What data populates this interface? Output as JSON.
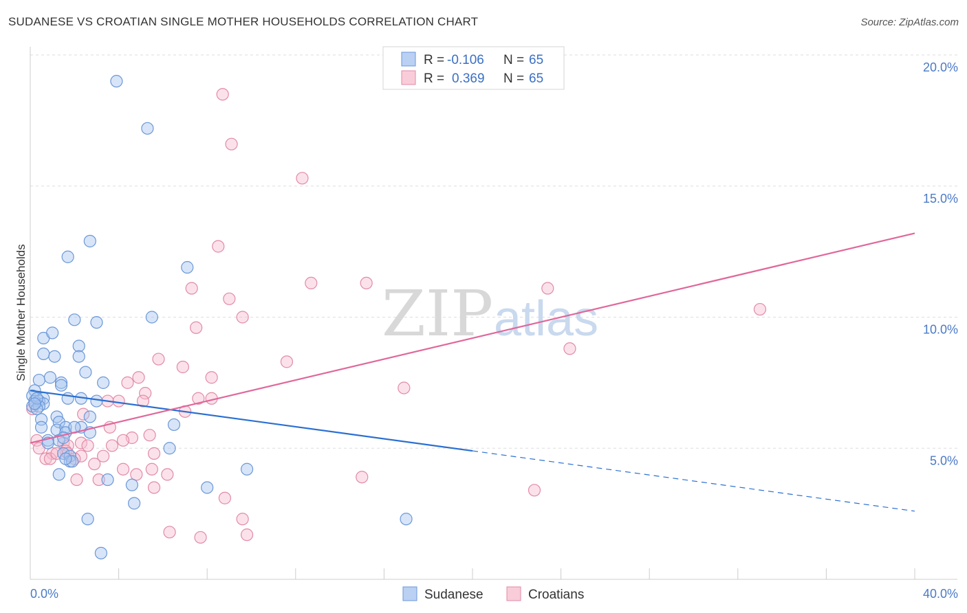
{
  "title": "SUDANESE VS CROATIAN SINGLE MOTHER HOUSEHOLDS CORRELATION CHART",
  "source": "Source: ZipAtlas.com",
  "watermark": {
    "zip": "ZIP",
    "atlas": "atlas"
  },
  "colors": {
    "sudanese_fill": "#a9c6f0",
    "sudanese_stroke": "#6a97d8",
    "sudanese_line": "#2a6fd1",
    "croatian_fill": "#f7bfd0",
    "croatian_stroke": "#e28aa6",
    "croatian_line": "#e0679a",
    "axis_text": "#4a7ac7",
    "grid": "#dddddd"
  },
  "legend": {
    "items": [
      {
        "r_label": "R =",
        "r_value": "-0.106",
        "n_label": "N =",
        "n_value": "65"
      },
      {
        "r_label": "R =",
        "r_value": "0.369",
        "n_label": "N =",
        "n_value": "65"
      }
    ],
    "bottom": [
      "Sudanese",
      "Croatians"
    ]
  },
  "chart_data": {
    "type": "scatter",
    "title": "SUDANESE VS CROATIAN SINGLE MOTHER HOUSEHOLDS CORRELATION CHART",
    "xlabel": "",
    "ylabel": "Single Mother Households",
    "xlim": [
      0,
      40
    ],
    "ylim": [
      0,
      20
    ],
    "x_tick_labels": [
      "0.0%",
      "40.0%"
    ],
    "y_ticks": [
      5,
      10,
      15,
      20
    ],
    "y_tick_labels": [
      "5.0%",
      "10.0%",
      "15.0%",
      "20.0%"
    ],
    "grid": true,
    "legend_position": "top-center",
    "series": [
      {
        "name": "Sudanese",
        "r": -0.106,
        "n": 65,
        "trend": {
          "x0": 0,
          "y0": 7.2,
          "x1": 20,
          "y1": 4.9,
          "x_dash_end": 40,
          "y_dash_end": 2.6
        },
        "points": [
          [
            3.9,
            19.0
          ],
          [
            5.3,
            17.2
          ],
          [
            2.7,
            12.9
          ],
          [
            1.7,
            12.3
          ],
          [
            7.1,
            11.9
          ],
          [
            2.0,
            9.9
          ],
          [
            3.0,
            9.8
          ],
          [
            5.5,
            10.0
          ],
          [
            0.6,
            9.2
          ],
          [
            1.0,
            9.4
          ],
          [
            2.2,
            8.9
          ],
          [
            0.6,
            8.6
          ],
          [
            1.1,
            8.5
          ],
          [
            2.2,
            8.5
          ],
          [
            2.5,
            7.9
          ],
          [
            0.4,
            7.6
          ],
          [
            0.9,
            7.7
          ],
          [
            1.4,
            7.5
          ],
          [
            1.4,
            7.4
          ],
          [
            3.3,
            7.5
          ],
          [
            0.2,
            7.2
          ],
          [
            0.1,
            7.0
          ],
          [
            0.6,
            6.9
          ],
          [
            1.7,
            6.9
          ],
          [
            2.3,
            6.9
          ],
          [
            3.0,
            6.8
          ],
          [
            0.2,
            6.8
          ],
          [
            0.4,
            6.8
          ],
          [
            0.6,
            6.7
          ],
          [
            0.1,
            6.6
          ],
          [
            0.4,
            6.6
          ],
          [
            0.3,
            6.5
          ],
          [
            1.2,
            6.2
          ],
          [
            0.5,
            6.1
          ],
          [
            2.7,
            6.2
          ],
          [
            1.3,
            6.0
          ],
          [
            6.5,
            5.9
          ],
          [
            0.5,
            5.8
          ],
          [
            1.2,
            5.7
          ],
          [
            1.6,
            5.8
          ],
          [
            2.3,
            5.8
          ],
          [
            1.6,
            5.6
          ],
          [
            2.7,
            5.6
          ],
          [
            0.8,
            5.3
          ],
          [
            1.3,
            5.3
          ],
          [
            6.3,
            5.0
          ],
          [
            1.5,
            4.8
          ],
          [
            1.8,
            4.7
          ],
          [
            1.8,
            4.5
          ],
          [
            1.9,
            4.5
          ],
          [
            9.8,
            4.2
          ],
          [
            1.3,
            4.0
          ],
          [
            3.5,
            3.8
          ],
          [
            4.6,
            3.6
          ],
          [
            8.0,
            3.5
          ],
          [
            4.7,
            2.9
          ],
          [
            2.6,
            2.3
          ],
          [
            17.0,
            2.3
          ],
          [
            3.2,
            1.0
          ],
          [
            0.3,
            6.9
          ],
          [
            0.2,
            6.7
          ],
          [
            1.5,
            5.4
          ],
          [
            2.0,
            5.8
          ],
          [
            0.8,
            5.2
          ],
          [
            1.6,
            4.6
          ]
        ]
      },
      {
        "name": "Croatians",
        "r": 0.369,
        "n": 65,
        "trend": {
          "x0": 0,
          "y0": 5.2,
          "x1": 40,
          "y1": 13.2
        },
        "points": [
          [
            8.7,
            18.5
          ],
          [
            9.1,
            16.6
          ],
          [
            12.3,
            15.3
          ],
          [
            8.5,
            12.7
          ],
          [
            12.7,
            11.3
          ],
          [
            7.3,
            11.1
          ],
          [
            15.2,
            11.3
          ],
          [
            23.4,
            11.1
          ],
          [
            9.0,
            10.7
          ],
          [
            9.6,
            10.0
          ],
          [
            33.0,
            10.3
          ],
          [
            7.5,
            9.6
          ],
          [
            24.4,
            8.8
          ],
          [
            5.8,
            8.4
          ],
          [
            11.6,
            8.3
          ],
          [
            6.9,
            8.1
          ],
          [
            4.9,
            7.7
          ],
          [
            8.2,
            7.7
          ],
          [
            4.4,
            7.5
          ],
          [
            16.9,
            7.3
          ],
          [
            5.2,
            7.1
          ],
          [
            7.6,
            6.9
          ],
          [
            8.2,
            6.9
          ],
          [
            4.0,
            6.8
          ],
          [
            3.5,
            6.8
          ],
          [
            5.1,
            6.8
          ],
          [
            7.0,
            6.4
          ],
          [
            2.4,
            6.3
          ],
          [
            3.6,
            5.8
          ],
          [
            5.4,
            5.5
          ],
          [
            4.6,
            5.4
          ],
          [
            4.2,
            5.3
          ],
          [
            0.3,
            5.3
          ],
          [
            1.5,
            5.2
          ],
          [
            2.3,
            5.2
          ],
          [
            0.4,
            5.0
          ],
          [
            1.7,
            5.1
          ],
          [
            2.6,
            5.1
          ],
          [
            3.7,
            5.1
          ],
          [
            1.6,
            4.9
          ],
          [
            5.6,
            4.8
          ],
          [
            1.0,
            4.8
          ],
          [
            2.3,
            4.7
          ],
          [
            1.7,
            4.8
          ],
          [
            3.3,
            4.7
          ],
          [
            0.7,
            4.6
          ],
          [
            0.9,
            4.6
          ],
          [
            2.9,
            4.4
          ],
          [
            5.5,
            4.2
          ],
          [
            4.2,
            4.2
          ],
          [
            6.2,
            4.0
          ],
          [
            4.8,
            4.0
          ],
          [
            3.1,
            3.8
          ],
          [
            15.0,
            3.9
          ],
          [
            2.1,
            3.8
          ],
          [
            5.6,
            3.5
          ],
          [
            22.8,
            3.4
          ],
          [
            8.8,
            3.1
          ],
          [
            9.6,
            2.3
          ],
          [
            6.3,
            1.8
          ],
          [
            7.7,
            1.6
          ],
          [
            9.8,
            1.7
          ],
          [
            0.1,
            6.5
          ],
          [
            1.2,
            4.8
          ],
          [
            2.0,
            4.6
          ]
        ]
      }
    ]
  }
}
